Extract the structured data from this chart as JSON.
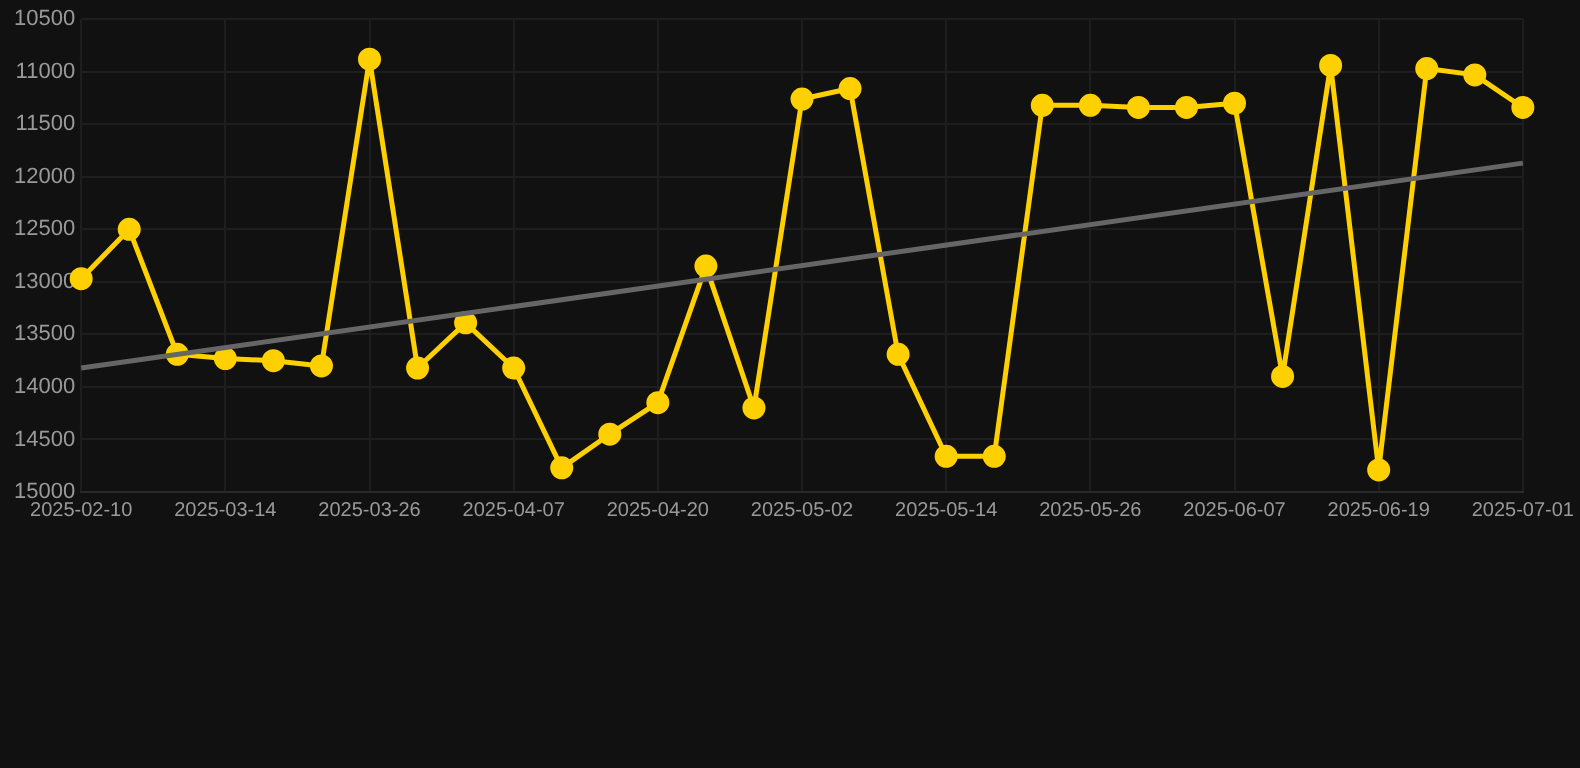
{
  "chart_data": {
    "type": "line",
    "categories": [
      "2025-02-10",
      null,
      null,
      "2025-03-14",
      null,
      null,
      "2025-03-26",
      null,
      null,
      "2025-04-07",
      null,
      null,
      "2025-04-20",
      null,
      null,
      "2025-05-02",
      null,
      null,
      "2025-05-14",
      null,
      null,
      "2025-05-26",
      null,
      null,
      "2025-06-07",
      null,
      null,
      "2025-06-19",
      null,
      null,
      "2025-07-01"
    ],
    "series": [
      {
        "color": "#ffd000",
        "marker": "circle",
        "values": [
          12970,
          12500,
          13690,
          13730,
          13750,
          13800,
          10880,
          13820,
          13390,
          13820,
          14770,
          14450,
          14150,
          12850,
          14200,
          11260,
          11160,
          13690,
          14660,
          14660,
          11320,
          11320,
          11340,
          11340,
          11300,
          13900,
          10940,
          14790,
          10970,
          11030,
          11340
        ]
      },
      {
        "color": "#666666",
        "marker": "none",
        "values": [
          13820,
          null,
          null,
          null,
          null,
          null,
          null,
          null,
          null,
          null,
          null,
          null,
          null,
          null,
          null,
          null,
          null,
          null,
          null,
          null,
          null,
          null,
          null,
          null,
          null,
          null,
          null,
          null,
          null,
          null,
          11870
        ]
      }
    ],
    "ylim": [
      15000,
      10500
    ],
    "yticks": [
      10500,
      11000,
      11500,
      12000,
      12500,
      13000,
      13500,
      14000,
      14500,
      15000
    ],
    "grid": true,
    "legend": false
  }
}
